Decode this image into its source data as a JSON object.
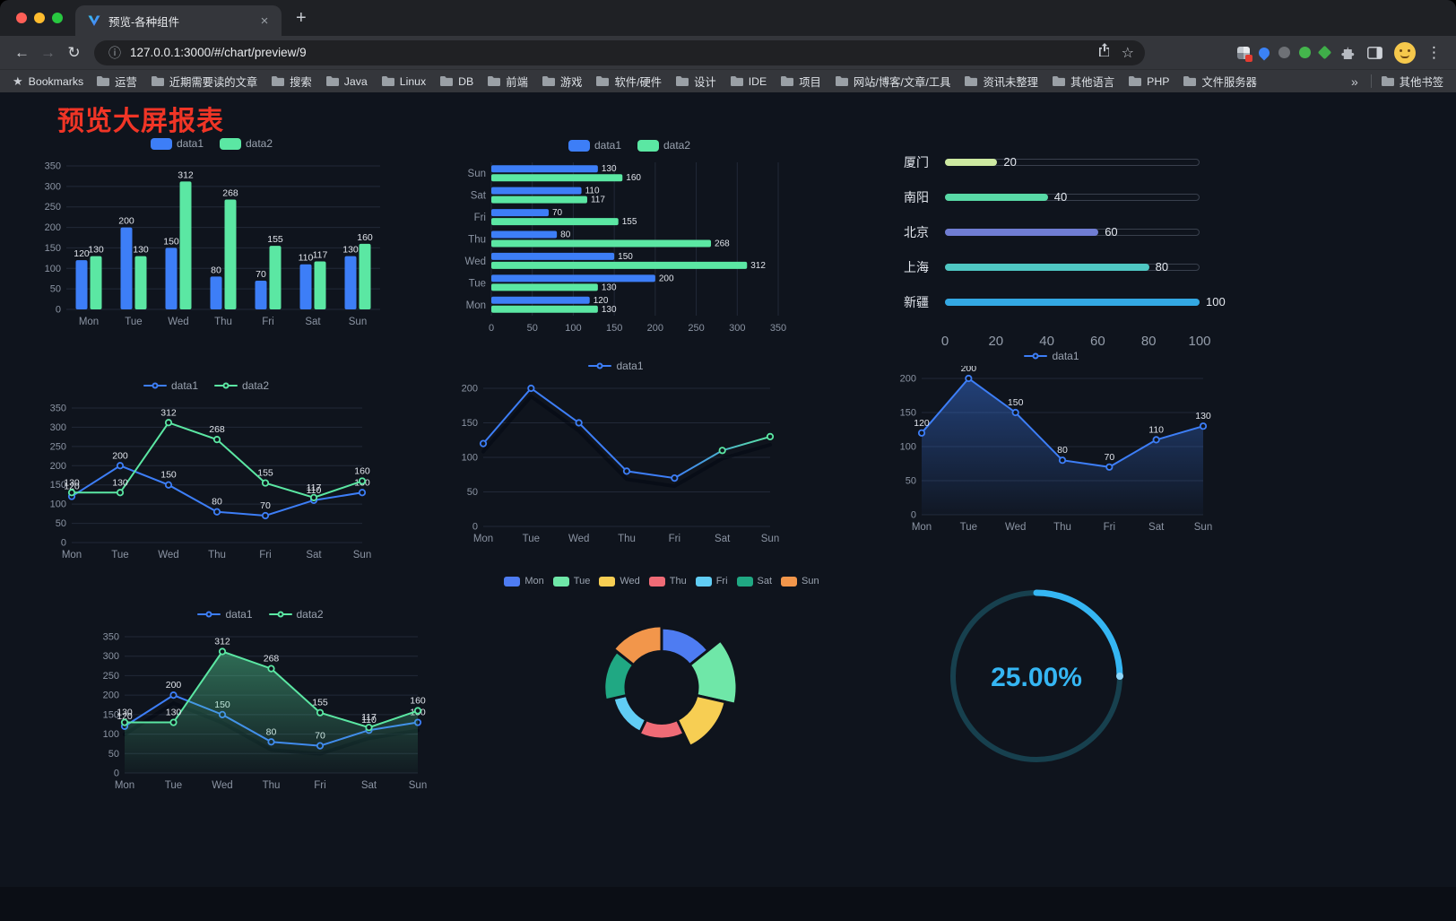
{
  "browser": {
    "tab": {
      "title": "预览-各种组件"
    },
    "omnibox": {
      "url": "127.0.0.1:3000/#/chart/preview/9"
    },
    "icons": {
      "back": "←",
      "forward": "→",
      "reload": "↻",
      "info": "ⓘ",
      "star": "☆",
      "kebab": "⋮",
      "close_tab": "×",
      "new_tab": "+",
      "bookmark_star": "★"
    },
    "bookmarks_bar": {
      "label": "Bookmarks",
      "folders": [
        "运营",
        "近期需要读的文章",
        "搜索",
        "Java",
        "Linux",
        "DB",
        "前端",
        "游戏",
        "软件/硬件",
        "设计",
        "IDE",
        "项目",
        "网站/博客/文章/工具",
        "资讯未整理",
        "其他语言",
        "PHP",
        "文件服务器"
      ],
      "overflow": "»",
      "other": "其他书签"
    }
  },
  "page": {
    "title": "预览大屏报表",
    "title_color": "#F03526",
    "background": "#0F141D"
  },
  "chart_data": [
    {
      "render": "bar-v",
      "type": "bar",
      "legend": true,
      "categories": [
        "Mon",
        "Tue",
        "Wed",
        "Thu",
        "Fri",
        "Sat",
        "Sun"
      ],
      "series": [
        {
          "name": "data1",
          "color": "#3D7EF7",
          "values": [
            120,
            200,
            150,
            80,
            70,
            110,
            130
          ]
        },
        {
          "name": "data2",
          "color": "#5BE7A3",
          "values": [
            130,
            130,
            312,
            268,
            155,
            117,
            160
          ]
        }
      ],
      "ylim": [
        0,
        350
      ],
      "ytick": 50,
      "value_labels": true
    },
    {
      "render": "bar-h",
      "type": "bar",
      "orientation": "horizontal",
      "legend": true,
      "categories": [
        "Mon",
        "Tue",
        "Wed",
        "Thu",
        "Fri",
        "Sat",
        "Sun"
      ],
      "series": [
        {
          "name": "data1",
          "color": "#3D7EF7",
          "values": [
            120,
            200,
            150,
            80,
            70,
            110,
            130
          ]
        },
        {
          "name": "data2",
          "color": "#5BE7A3",
          "values": [
            130,
            130,
            312,
            268,
            155,
            117,
            160
          ]
        }
      ],
      "xlim": [
        0,
        350
      ],
      "xtick": 50,
      "value_labels": true
    },
    {
      "render": "progress",
      "type": "bar",
      "orientation": "horizontal",
      "legend": false,
      "categories": [
        "厦门",
        "南阳",
        "北京",
        "上海",
        "新疆"
      ],
      "values": [
        20,
        40,
        60,
        80,
        100
      ],
      "colors": [
        "#CDE9A1",
        "#58D9A6",
        "#707DD3",
        "#4FC7C3",
        "#33A8E3"
      ],
      "xlim": [
        0,
        100
      ],
      "xticks": [
        0,
        20,
        40,
        60,
        80,
        100
      ]
    },
    {
      "render": "line",
      "type": "line",
      "legend": true,
      "categories": [
        "Mon",
        "Tue",
        "Wed",
        "Thu",
        "Fri",
        "Sat",
        "Sun"
      ],
      "series": [
        {
          "name": "data1",
          "color": "#3D7EF7",
          "values": [
            120,
            200,
            150,
            80,
            70,
            110,
            130
          ]
        },
        {
          "name": "data2",
          "color": "#5BE7A3",
          "values": [
            130,
            130,
            312,
            268,
            155,
            117,
            160
          ]
        }
      ],
      "ylim": [
        0,
        350
      ],
      "ytick": 50,
      "value_labels": true
    },
    {
      "render": "line",
      "type": "line",
      "legend": true,
      "categories": [
        "Mon",
        "Tue",
        "Wed",
        "Thu",
        "Fri",
        "Sat",
        "Sun"
      ],
      "series": [
        {
          "name": "data1",
          "gradient": [
            "#3D7EF7",
            "#3D7EF7",
            "#3D7EF7",
            "#5BE7A3"
          ],
          "shadow": true,
          "values": [
            120,
            200,
            150,
            80,
            70,
            110,
            130
          ]
        }
      ],
      "ylim": [
        0,
        200
      ],
      "ytick": 50,
      "value_labels": false
    },
    {
      "render": "line",
      "type": "area",
      "legend": true,
      "categories": [
        "Mon",
        "Tue",
        "Wed",
        "Thu",
        "Fri",
        "Sat",
        "Sun"
      ],
      "series": [
        {
          "name": "data1",
          "color": "#3D7EF7",
          "area": true,
          "values": [
            120,
            200,
            150,
            80,
            70,
            110,
            130
          ]
        }
      ],
      "ylim": [
        0,
        200
      ],
      "ytick": 50,
      "value_labels": true
    },
    {
      "render": "line",
      "type": "line",
      "legend": true,
      "categories": [
        "Mon",
        "Tue",
        "Wed",
        "Thu",
        "Fri",
        "Sat",
        "Sun"
      ],
      "series": [
        {
          "name": "data1",
          "color": "#3D7EF7",
          "shadow": true,
          "values": [
            120,
            200,
            150,
            80,
            70,
            110,
            130
          ]
        },
        {
          "name": "data2",
          "color": "#5BE7A3",
          "area": true,
          "values": [
            130,
            130,
            312,
            268,
            155,
            117,
            160
          ]
        }
      ],
      "ylim": [
        0,
        350
      ],
      "ytick": 50,
      "value_labels": true
    },
    {
      "render": "rose",
      "type": "pie",
      "legend": true,
      "categories": [
        "Mon",
        "Tue",
        "Wed",
        "Thu",
        "Fri",
        "Sat",
        "Sun"
      ],
      "values": [
        120,
        200,
        150,
        80,
        70,
        110,
        130
      ],
      "colors": [
        "#4E7CF2",
        "#6FE7A8",
        "#F7CE53",
        "#EF6B76",
        "#61CDF4",
        "#20A883",
        "#F2964B"
      ],
      "inner_radius": 40
    },
    {
      "render": "gauge",
      "type": "gauge",
      "legend": false,
      "value": 25,
      "label": "25.00%",
      "color": "#35B6F3",
      "track_color": "#17404E"
    }
  ]
}
